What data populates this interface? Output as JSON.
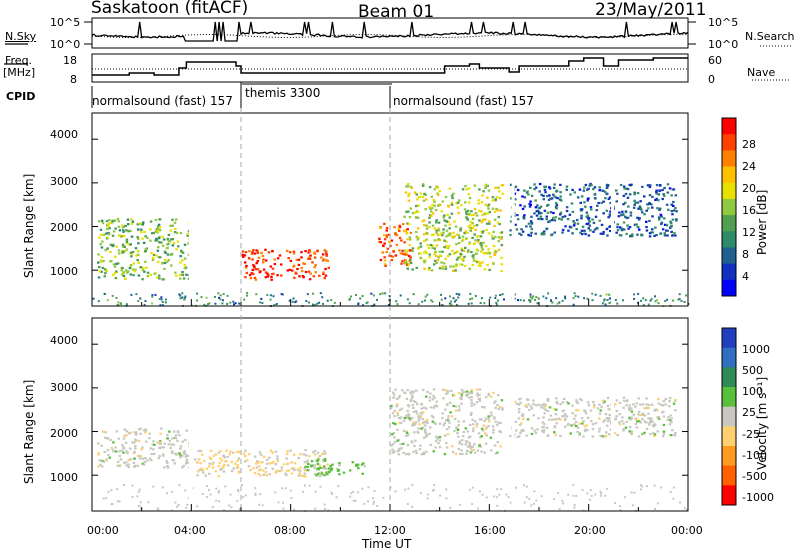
{
  "header": {
    "station": "Saskatoon (fitACF)",
    "beam": "Beam 01",
    "date": "23/May/2011"
  },
  "noise_panel": {
    "left_label": "N.Sky",
    "right_label": "N.Search",
    "left_ticks": [
      "10^5",
      "10^0"
    ],
    "right_ticks": [
      "10^5",
      "10^0"
    ]
  },
  "freq_panel": {
    "left_label_1": "Freq.",
    "left_label_2": "[MHz]",
    "right_label": "Nave",
    "left_ticks": [
      "18",
      "8"
    ],
    "right_ticks": [
      "60",
      "0"
    ]
  },
  "cpid_panel": {
    "label": "CPID",
    "modes": [
      {
        "text": "normalsound (fast) 157",
        "start": "00:00"
      },
      {
        "text": "themis 3300",
        "start": "06:00"
      },
      {
        "text": "normalsound (fast) 157",
        "start": "12:00"
      }
    ]
  },
  "power_panel": {
    "ylabel": "Slant Range [km]",
    "yticks": [
      "4000",
      "3000",
      "2000",
      "1000"
    ],
    "colorbar_label": "Power [dB]",
    "colorbar_ticks": [
      "28",
      "24",
      "20",
      "16",
      "12",
      "8",
      "4"
    ],
    "colors": [
      "#ff0000",
      "#ff4000",
      "#ff8000",
      "#ffc000",
      "#e8e000",
      "#90c840",
      "#50a050",
      "#2e8b6a",
      "#206090",
      "#1030c0",
      "#0000ff"
    ]
  },
  "velocity_panel": {
    "ylabel": "Slant Range [km]",
    "yticks": [
      "4000",
      "3000",
      "2000",
      "1000"
    ],
    "colorbar_label": "Velocity [m s⁻¹]",
    "colorbar_ticks": [
      "1000",
      "500",
      "100",
      "25",
      "-25",
      "-100",
      "-500",
      "-1000"
    ],
    "colors": [
      "#1f3fbf",
      "#2f6fbf",
      "#2e8b57",
      "#5abf3a",
      "#c8c8c0",
      "#ffd070",
      "#ff9a20",
      "#ff6000",
      "#ff0000"
    ]
  },
  "xaxis": {
    "label": "Time UT",
    "ticks": [
      "00:00",
      "04:00",
      "08:00",
      "12:00",
      "16:00",
      "20:00",
      "00:00"
    ]
  },
  "chart_data": [
    {
      "type": "heatmap",
      "title": "Saskatoon (fitACF) Beam 01 23/May/2011",
      "ylabel": "Slant Range [km]",
      "xlabel": "Time UT",
      "xlim": [
        "00:00",
        "24:00"
      ],
      "ylim": [
        180,
        4600
      ],
      "colorbar": "Power [dB]",
      "clim": [
        0,
        30
      ],
      "features": [
        {
          "t": [
            0.2,
            3.9
          ],
          "range": [
            800,
            2200
          ],
          "value": 14
        },
        {
          "t": [
            6.0,
            9.5
          ],
          "range": [
            800,
            1500
          ],
          "value": 28
        },
        {
          "t": [
            11.5,
            12.8
          ],
          "range": [
            1100,
            2100
          ],
          "value": 26
        },
        {
          "t": [
            12.5,
            16.5
          ],
          "range": [
            1000,
            3000
          ],
          "value": 16
        },
        {
          "t": [
            16.8,
            23.5
          ],
          "range": [
            1800,
            3000
          ],
          "value": 6
        }
      ]
    },
    {
      "type": "heatmap",
      "title": "Saskatoon (fitACF) Beam 01 23/May/2011",
      "ylabel": "Slant Range [km]",
      "xlabel": "Time UT",
      "xlim": [
        "00:00",
        "24:00"
      ],
      "ylim": [
        180,
        4600
      ],
      "colorbar": "Velocity [m s⁻¹]",
      "clim": [
        -1000,
        1000
      ],
      "features": [
        {
          "t": [
            0.2,
            3.9
          ],
          "range": [
            1200,
            2100
          ],
          "value": 0
        },
        {
          "t": [
            3.9,
            9.5
          ],
          "range": [
            1000,
            1600
          ],
          "value": -150
        },
        {
          "t": [
            8.5,
            11.0
          ],
          "range": [
            1000,
            1400
          ],
          "value": 200
        },
        {
          "t": [
            12.0,
            16.5
          ],
          "range": [
            1500,
            3000
          ],
          "value": 0
        },
        {
          "t": [
            16.8,
            23.5
          ],
          "range": [
            1900,
            2800
          ],
          "value": 0
        }
      ]
    }
  ]
}
